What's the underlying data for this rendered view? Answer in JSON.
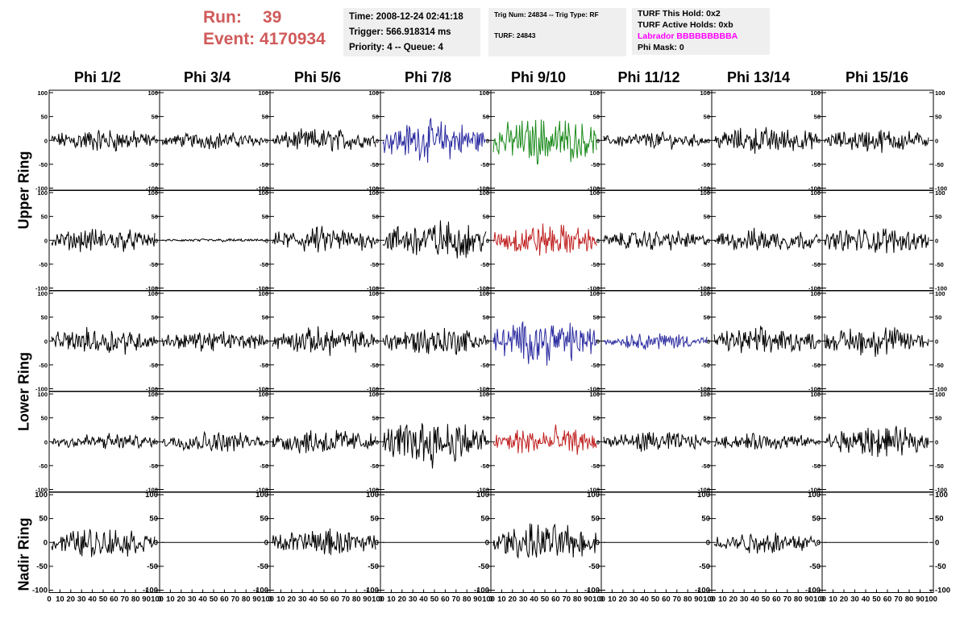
{
  "header": {
    "run_label": "Run:",
    "run_value": "39",
    "event_label": "Event:",
    "event_value": "4170934",
    "time": "Time: 2008-12-24 02:41:18",
    "trigger": "Trigger: 566.918314 ms",
    "priority": "Priority: 4 -- Queue: 4",
    "trig_num": "Trig Num: 24834 -- Trig Type: RF",
    "turf": "TURF: 24843",
    "turf_hold": "TURF This Hold: 0x2",
    "turf_active": "TURF Active Holds: 0xb",
    "labrador": "Labrador BBBBBBBBBA",
    "phi_mask": "Phi Mask: 0"
  },
  "columns": [
    "Phi 1/2",
    "Phi 3/4",
    "Phi 5/6",
    "Phi 7/8",
    "Phi 9/10",
    "Phi 11/12",
    "Phi 13/14",
    "Phi 15/16"
  ],
  "ring_labels": [
    "Upper Ring",
    "Lower Ring",
    "Nadir Ring"
  ],
  "colors": {
    "run_text": "#d05a5a",
    "labrador": "#ff00ff",
    "info_bg": "#efefef",
    "normal": "#000000",
    "blue": "#2a2aa0",
    "green": "#1a8a1a",
    "red": "#c02020"
  },
  "chart_data": {
    "type": "line",
    "title": "",
    "xlabel": "",
    "ylabel": "",
    "xlim": [
      0,
      100
    ],
    "x_ticks": [
      "0",
      "10",
      "20",
      "30",
      "40",
      "50",
      "60",
      "70",
      "80",
      "90",
      "100"
    ],
    "ylim": [
      -100,
      100
    ],
    "y_ticks": [
      "100",
      "50",
      "0",
      "-50",
      "-100"
    ],
    "panel_rows": [
      {
        "ring": "Upper Ring",
        "amplitudes": [
          14,
          10,
          14,
          24,
          28,
          10,
          16,
          14
        ],
        "colors": [
          "normal",
          "normal",
          "normal",
          "blue",
          "green",
          "normal",
          "normal",
          "normal"
        ]
      },
      {
        "ring": "Upper Ring",
        "amplitudes": [
          14,
          2,
          16,
          24,
          20,
          12,
          14,
          16
        ],
        "colors": [
          "normal",
          "normal",
          "normal",
          "normal",
          "red",
          "normal",
          "normal",
          "normal"
        ]
      },
      {
        "ring": "Lower Ring",
        "amplitudes": [
          16,
          12,
          16,
          18,
          26,
          10,
          16,
          18
        ],
        "colors": [
          "normal",
          "normal",
          "normal",
          "normal",
          "blue",
          "blue",
          "normal",
          "normal"
        ]
      },
      {
        "ring": "Lower Ring",
        "amplitudes": [
          10,
          12,
          16,
          28,
          18,
          12,
          10,
          18
        ],
        "colors": [
          "normal",
          "normal",
          "normal",
          "normal",
          "red",
          "normal",
          "normal",
          "normal"
        ]
      },
      {
        "ring": "Nadir Ring",
        "amplitudes": [
          18,
          0,
          16,
          0,
          22,
          0,
          14,
          0
        ],
        "colors": [
          "normal",
          "normal",
          "normal",
          "normal",
          "normal",
          "normal",
          "normal",
          "normal"
        ]
      }
    ]
  }
}
